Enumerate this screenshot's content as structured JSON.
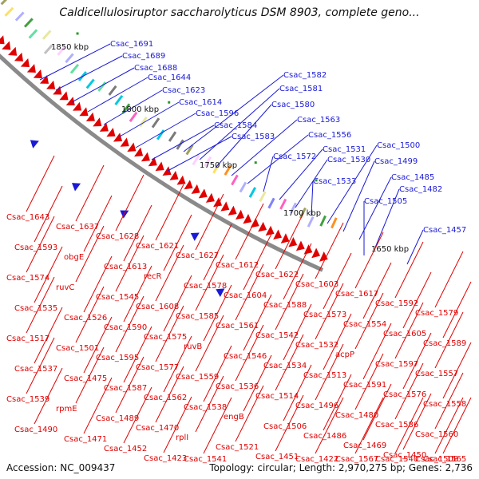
{
  "title": "Caldicellulosiruptor saccharolyticus DSM 8903, complete geno...",
  "accession": "Accession: NC_009437",
  "summary": "Topology: circular; Length: 2,970,275 bp; Genes: 2,736",
  "colors": {
    "forward": "#1a1ad6",
    "reverse": "#e00000",
    "backbone": "#8a8a8a",
    "rna": "#2a9a2a"
  },
  "kbp_labels": [
    "1850 kbp",
    "1800 kbp",
    "1750 kbp",
    "1700 kbp",
    "1650 kbp"
  ],
  "forward_labels": [
    "Csac_1691",
    "Csac_1689",
    "Csac_1688",
    "Csac_1644",
    "Csac_1623",
    "Csac_1614",
    "Csac_1596",
    "Csac_1584",
    "Csac_1583",
    "Csac_1582",
    "Csac_1581",
    "Csac_1580",
    "Csac_1563",
    "Csac_1556",
    "Csac_1572",
    "Csac_1531",
    "Csac_1530",
    "Csac_1533",
    "Csac_1500",
    "Csac_1499",
    "Csac_1485",
    "Csac_1482",
    "Csac_1505",
    "Csac_1457"
  ],
  "reverse_labels": [
    "Csac_1643",
    "Csac_1637",
    "Csac_1628",
    "Csac_1621",
    "Csac_1627",
    "Csac_1612",
    "Csac_1622",
    "Csac_1603",
    "Csac_1617",
    "Csac_1592",
    "Csac_1579",
    "Csac_1593",
    "obgE",
    "Csac_1613",
    "recR",
    "Csac_1578",
    "Csac_1604",
    "Csac_1588",
    "Csac_1573",
    "Csac_1554",
    "Csac_1605",
    "Csac_1589",
    "Csac_1574",
    "ruvC",
    "Csac_1545",
    "Csac_1608",
    "Csac_1585",
    "Csac_1561",
    "Csac_1542",
    "Csac_1532",
    "acpP",
    "Csac_1597",
    "Csac_1557",
    "Csac_1535",
    "Csac_1526",
    "Csac_1590",
    "Csac_1575",
    "ruvB",
    "Csac_1546",
    "Csac_1534",
    "Csac_1513",
    "Csac_1591",
    "Csac_1576",
    "Csac_1558",
    "Csac_1517",
    "Csac_1501",
    "Csac_1595",
    "Csac_1577",
    "Csac_1559",
    "Csac_1536",
    "Csac_1514",
    "Csac_1496",
    "Csac_1480",
    "Csac_1586",
    "Csac_1560",
    "Csac_1537",
    "Csac_1475",
    "Csac_1587",
    "Csac_1562",
    "Csac_1538",
    "engB",
    "Csac_1506",
    "Csac_1486",
    "Csac_1469",
    "Csac_1450",
    "Csac_1565",
    "Csac_1539",
    "rpmE",
    "Csac_1489",
    "Csac_1470",
    "rplI",
    "Csac_1521",
    "Csac_1451",
    "Csac_1422",
    "Csac_1567",
    "Csac_1540",
    "Csac_1508",
    "Csac_1490",
    "Csac_1471",
    "Csac_1452",
    "Csac_1423",
    "Csac_1541"
  ]
}
